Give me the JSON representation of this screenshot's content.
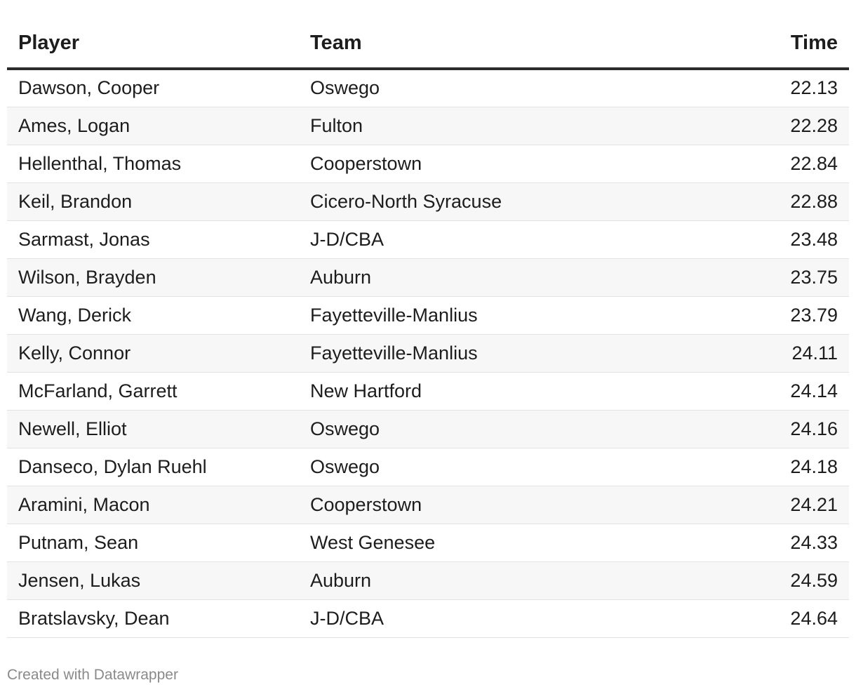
{
  "table": {
    "header": [
      "Player",
      "Team",
      "Time"
    ],
    "rows": [
      [
        "Dawson, Cooper",
        "Oswego",
        "22.13"
      ],
      [
        "Ames, Logan",
        "Fulton",
        "22.28"
      ],
      [
        "Hellenthal, Thomas",
        "Cooperstown",
        "22.84"
      ],
      [
        "Keil, Brandon",
        "Cicero-North Syracuse",
        "22.88"
      ],
      [
        "Sarmast, Jonas",
        "J-D/CBA",
        "23.48"
      ],
      [
        "Wilson, Brayden",
        "Auburn",
        "23.75"
      ],
      [
        "Wang, Derick",
        "Fayetteville-Manlius",
        "23.79"
      ],
      [
        "Kelly, Connor",
        "Fayetteville-Manlius",
        "24.11"
      ],
      [
        "McFarland, Garrett",
        "New Hartford",
        "24.14"
      ],
      [
        "Newell, Elliot",
        "Oswego",
        "24.16"
      ],
      [
        "Danseco, Dylan Ruehl",
        "Oswego",
        "24.18"
      ],
      [
        "Aramini, Macon",
        "Cooperstown",
        "24.21"
      ],
      [
        "Putnam, Sean",
        "West Genesee",
        "24.33"
      ],
      [
        "Jensen, Lukas",
        "Auburn",
        "24.59"
      ],
      [
        "Bratslavsky, Dean",
        "J-D/CBA",
        "24.64"
      ]
    ]
  },
  "footer": "Created with Datawrapper"
}
